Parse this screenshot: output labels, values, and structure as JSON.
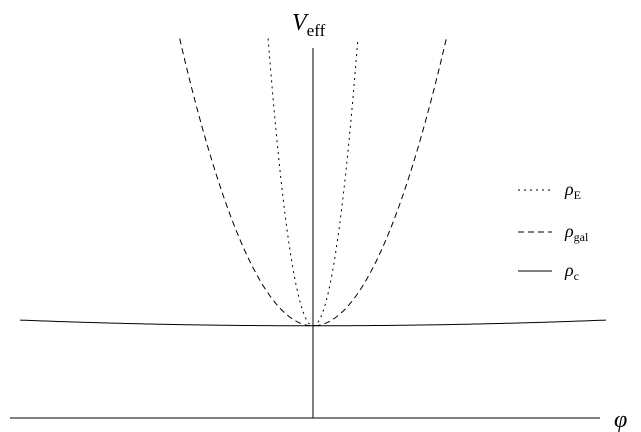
{
  "chart_data": {
    "type": "line",
    "title": "",
    "xlabel": "",
    "ylabel": "",
    "axes": {
      "y_symbol": "V",
      "y_subscript": "eff",
      "x_symbol": "φ"
    },
    "xlim": [
      -1,
      1
    ],
    "ylim": [
      0,
      1
    ],
    "grid": false,
    "legend_placement": "right",
    "series": [
      {
        "name_symbol": "ρ",
        "name_subscript": "E",
        "line_style": "dotted",
        "color": "#000000",
        "curvature": 30.0
      },
      {
        "name_symbol": "ρ",
        "name_subscript": "gal",
        "line_style": "dashed",
        "color": "#000000",
        "curvature": 3.4
      },
      {
        "name_symbol": "ρ",
        "name_subscript": "c",
        "line_style": "solid",
        "color": "#000000",
        "curvature": 0.014
      }
    ],
    "minimum": {
      "x": 0,
      "y": 0.226
    }
  }
}
